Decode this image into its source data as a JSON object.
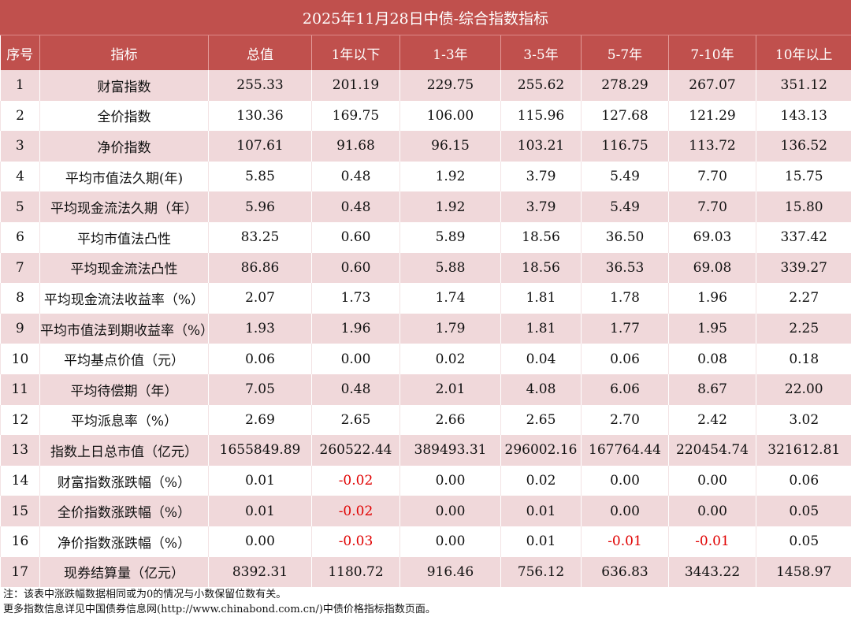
{
  "title": "2025年11月28日中债-综合指数指标",
  "headers": [
    "序号",
    "指标",
    "总值",
    "1年以下",
    "1-3年",
    "3-5年",
    "5-7年",
    "7-10年",
    "10年以上"
  ],
  "rows": [
    [
      "1",
      "财富指数",
      "255.33",
      "201.19",
      "229.75",
      "255.62",
      "278.29",
      "267.07",
      "351.12"
    ],
    [
      "2",
      "全价指数",
      "130.36",
      "169.75",
      "106.00",
      "115.96",
      "127.68",
      "121.29",
      "143.13"
    ],
    [
      "3",
      "净价指数",
      "107.61",
      "91.68",
      "96.15",
      "103.21",
      "116.75",
      "113.72",
      "136.52"
    ],
    [
      "4",
      "平均市值法久期(年)",
      "5.85",
      "0.48",
      "1.92",
      "3.79",
      "5.49",
      "7.70",
      "15.75"
    ],
    [
      "5",
      "平均现金流法久期（年）",
      "5.96",
      "0.48",
      "1.92",
      "3.79",
      "5.49",
      "7.70",
      "15.80"
    ],
    [
      "6",
      "平均市值法凸性",
      "83.25",
      "0.60",
      "5.89",
      "18.56",
      "36.50",
      "69.03",
      "337.42"
    ],
    [
      "7",
      "平均现金流法凸性",
      "86.86",
      "0.60",
      "5.88",
      "18.56",
      "36.53",
      "69.08",
      "339.27"
    ],
    [
      "8",
      "平均现金流法收益率（%）",
      "2.07",
      "1.73",
      "1.74",
      "1.81",
      "1.78",
      "1.96",
      "2.27"
    ],
    [
      "9",
      "平均市值法到期收益率（%）",
      "1.93",
      "1.96",
      "1.79",
      "1.81",
      "1.77",
      "1.95",
      "2.25"
    ],
    [
      "10",
      "平均基点价值（元）",
      "0.06",
      "0.00",
      "0.02",
      "0.04",
      "0.06",
      "0.08",
      "0.18"
    ],
    [
      "11",
      "平均待偿期（年）",
      "7.05",
      "0.48",
      "2.01",
      "4.08",
      "6.06",
      "8.67",
      "22.00"
    ],
    [
      "12",
      "平均派息率（%）",
      "2.69",
      "2.65",
      "2.66",
      "2.65",
      "2.70",
      "2.42",
      "3.02"
    ],
    [
      "13",
      "指数上日总市值（亿元）",
      "1655849.89",
      "260522.44",
      "389493.31",
      "296002.16",
      "167764.44",
      "220454.74",
      "321612.81"
    ],
    [
      "14",
      "财富指数涨跌幅（%）",
      "0.01",
      "-0.02",
      "0.00",
      "0.02",
      "0.00",
      "0.00",
      "0.06"
    ],
    [
      "15",
      "全价指数涨跌幅（%）",
      "0.01",
      "-0.02",
      "0.00",
      "0.01",
      "0.00",
      "0.00",
      "0.05"
    ],
    [
      "16",
      "净价指数涨跌幅（%）",
      "0.00",
      "-0.03",
      "0.00",
      "0.01",
      "-0.01",
      "-0.01",
      "0.05"
    ],
    [
      "17",
      "现券结算量（亿元）",
      "8392.31",
      "1180.72",
      "916.46",
      "756.12",
      "636.83",
      "3443.22",
      "1458.97"
    ]
  ],
  "notes": [
    "注：该表中涨跌幅数据相同或为0的情况与小数保留位数有关。",
    "更多指数信息详见中国债券信息网(http://www.chinabond.com.cn/)中债价格指标指数页面。"
  ],
  "colors": {
    "header": "#c0504d",
    "stripe": "#f0d8da",
    "negative": "#e00000"
  }
}
